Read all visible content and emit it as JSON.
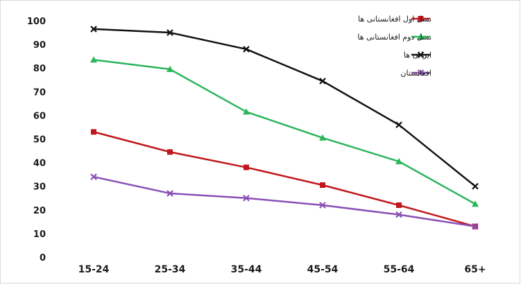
{
  "chart_data": {
    "type": "line",
    "title": "",
    "xlabel": "",
    "ylabel": "",
    "categories": [
      "15-24",
      "25-34",
      "35-44",
      "45-54",
      "55-64",
      "65+"
    ],
    "ylim": [
      0,
      100
    ],
    "yticks": [
      0,
      10,
      20,
      30,
      40,
      50,
      60,
      70,
      80,
      90,
      100
    ],
    "grid": false,
    "legend_position": "top-right",
    "series": [
      {
        "name": "نسل اول افغانستانی ها",
        "color": "#c0171c",
        "marker": "square",
        "values": [
          53,
          44.5,
          38,
          30.5,
          22,
          13
        ]
      },
      {
        "name": "نسل دوم افغانستانی ها",
        "color": "#2bb55a",
        "marker": "triangle",
        "values": [
          83.5,
          79.5,
          61.5,
          50.5,
          40.5,
          22.5
        ]
      },
      {
        "name": "ایرانی ها",
        "color": "#111111",
        "marker": "x",
        "values": [
          96.5,
          95,
          88,
          74.5,
          56,
          30
        ]
      },
      {
        "name": "افغانستان",
        "color": "#8a4fb5",
        "marker": "x",
        "values": [
          34,
          27,
          25,
          22,
          18,
          13
        ]
      }
    ]
  }
}
